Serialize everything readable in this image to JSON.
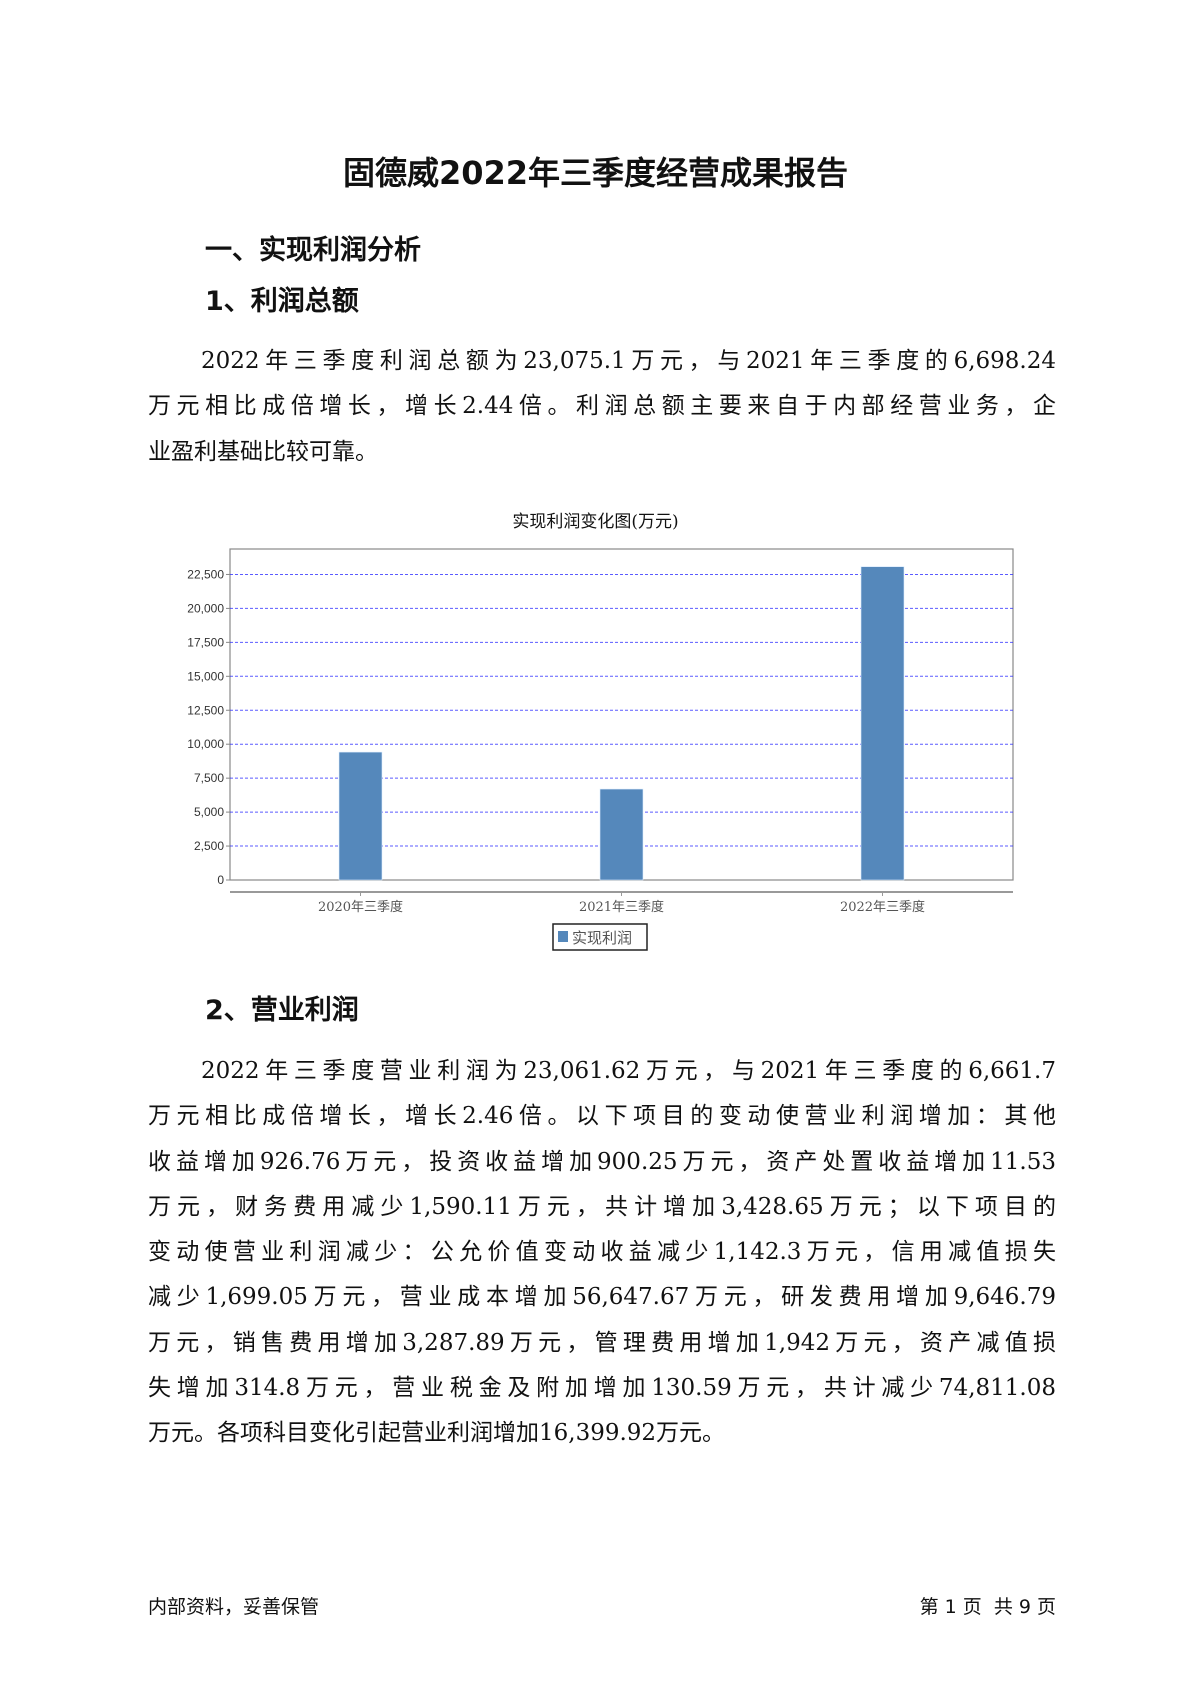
{
  "title": "固德威2022年三季度经营成果报告",
  "section1": "一、实现利润分析",
  "sub1": "1、利润总额",
  "para1": [
    "2022年三季度利润总额为23,075.1万元，与2021年三季度的6,698.24",
    "万元相比成倍增长，增长2.44倍。利润总额主要来自于内部经营业务，企",
    "业盈利基础比较可靠。"
  ],
  "chart_data": {
    "type": "bar",
    "title": "实现利润变化图(万元)",
    "categories": [
      "2020年三季度",
      "2021年三季度",
      "2022年三季度"
    ],
    "series": [
      {
        "name": "实现利润",
        "values": [
          9420,
          6698.24,
          23075.1
        ]
      }
    ],
    "ylim": [
      0,
      24375
    ],
    "yticks": [
      0,
      2500,
      5000,
      7500,
      10000,
      12500,
      15000,
      17500,
      20000,
      22500
    ],
    "ytick_labels": [
      "0",
      "2,500",
      "5,000",
      "7,500",
      "10,000",
      "12,500",
      "15,000",
      "17,500",
      "20,000",
      "22,500"
    ],
    "grid": true,
    "legend_position": "bottom",
    "bar_color": "#5588bb",
    "grid_color": "#3333ff"
  },
  "sub2": "2、营业利润",
  "para2": [
    "2022年三季度营业利润为23,061.62万元，与2021年三季度的6,661.7",
    "万元相比成倍增长，增长2.46倍。以下项目的变动使营业利润增加：其他",
    "收益增加926.76万元，投资收益增加900.25万元，资产处置收益增加11.53",
    "万元，财务费用减少1,590.11万元，共计增加3,428.65万元；以下项目的",
    "变动使营业利润减少：公允价值变动收益减少1,142.3万元，信用减值损失",
    "减少1,699.05万元，营业成本增加56,647.67万元，研发费用增加9,646.79",
    "万元，销售费用增加3,287.89万元，管理费用增加1,942万元，资产减值损",
    "失增加314.8万元，营业税金及附加增加130.59万元，共计减少74,811.08",
    "万元。各项科目变化引起营业利润增加16,399.92万元。"
  ],
  "footer": {
    "left": "内部资料，妥善保管",
    "right": "第 1 页  共 9 页"
  }
}
